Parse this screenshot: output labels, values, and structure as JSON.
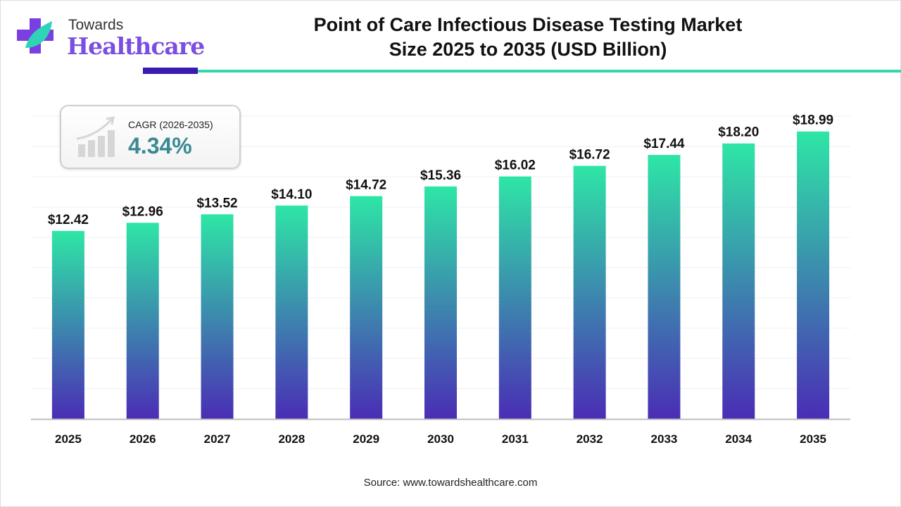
{
  "logo": {
    "line1": "Towards",
    "line2": "Healthcare"
  },
  "title_line1": "Point of Care Infectious Disease Testing Market",
  "title_line2": "Size 2025 to 2035 (USD Billion)",
  "cagr": {
    "label": "CAGR (2026-2035)",
    "value": "4.34%",
    "icon": "growth-chart-icon"
  },
  "source": "Source: www.towardshealthcare.com",
  "colors": {
    "bar_top": "#2ee6a6",
    "bar_bottom": "#4a2db5",
    "accent_dark": "#3a1ab0",
    "accent_teal": "#35d6a8",
    "cagr_value": "#3a8a92"
  },
  "chart_data": {
    "type": "bar",
    "title": "Point of Care Infectious Disease Testing Market Size 2025 to 2035 (USD Billion)",
    "categories": [
      "2025",
      "2026",
      "2027",
      "2028",
      "2029",
      "2030",
      "2031",
      "2032",
      "2033",
      "2034",
      "2035"
    ],
    "values": [
      12.42,
      12.96,
      13.52,
      14.1,
      14.72,
      15.36,
      16.02,
      16.72,
      17.44,
      18.2,
      18.99
    ],
    "data_labels": [
      "$12.42",
      "$12.96",
      "$13.52",
      "$14.10",
      "$14.72",
      "$15.36",
      "$16.02",
      "$16.72",
      "$17.44",
      "$18.20",
      "$18.99"
    ],
    "xlabel": "",
    "ylabel": "",
    "ylim": [
      0,
      20
    ],
    "grid": true,
    "legend": "none"
  }
}
